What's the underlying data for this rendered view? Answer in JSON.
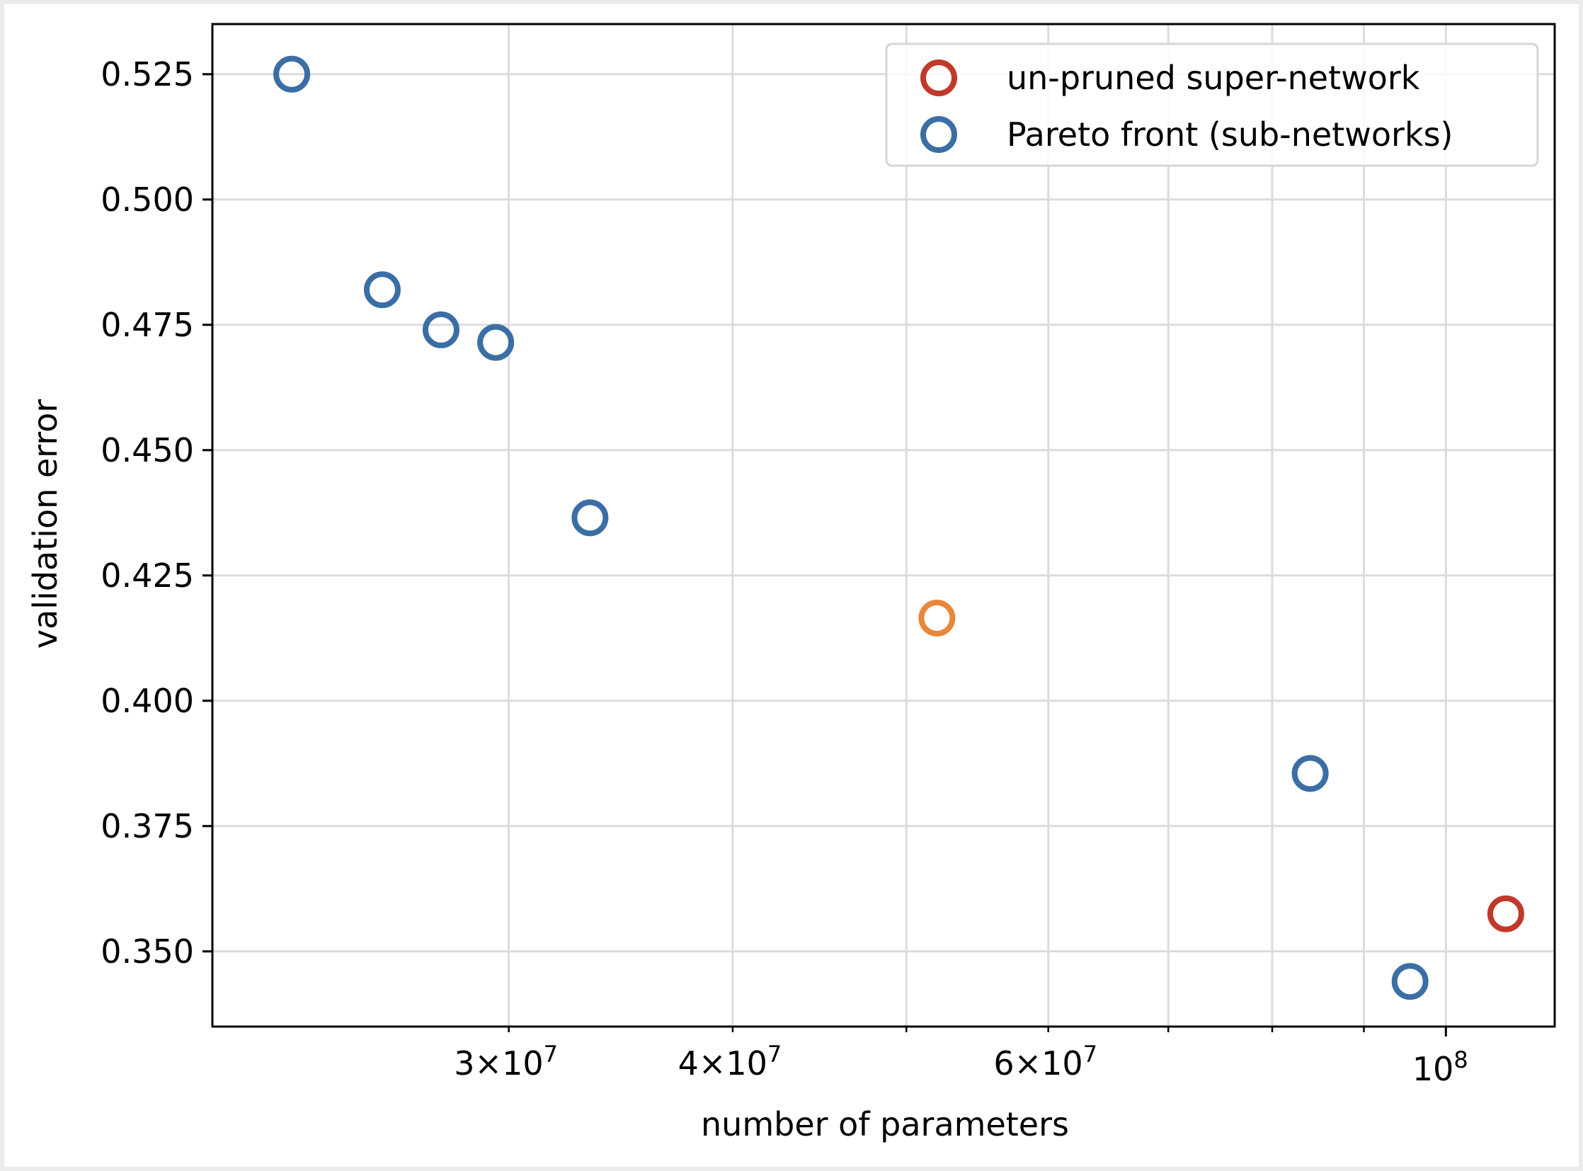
{
  "chart_data": {
    "type": "scatter",
    "title": "",
    "xlabel": "number of parameters",
    "ylabel": "validation error",
    "xscale": "log",
    "xlim": [
      20500000,
      115000000
    ],
    "ylim": [
      0.335,
      0.535
    ],
    "grid": true,
    "legend_position": "top-right",
    "x_major_ticks": [
      {
        "value": 100000000,
        "base": "10",
        "exp": "8"
      }
    ],
    "x_minor_ticks": [
      {
        "value": 30000000,
        "mantissa": "3",
        "base": "10",
        "exp": "7"
      },
      {
        "value": 40000000,
        "mantissa": "4",
        "base": "10",
        "exp": "7"
      },
      {
        "value": 50000000,
        "mantissa": "",
        "base": "",
        "exp": ""
      },
      {
        "value": 60000000,
        "mantissa": "6",
        "base": "10",
        "exp": "7"
      },
      {
        "value": 70000000,
        "mantissa": "",
        "base": "",
        "exp": ""
      },
      {
        "value": 80000000,
        "mantissa": "",
        "base": "",
        "exp": ""
      },
      {
        "value": 90000000,
        "mantissa": "",
        "base": "",
        "exp": ""
      }
    ],
    "y_ticks": [
      0.35,
      0.375,
      0.4,
      0.425,
      0.45,
      0.475,
      0.5,
      0.525
    ],
    "y_tick_labels": [
      "0.350",
      "0.375",
      "0.400",
      "0.425",
      "0.450",
      "0.475",
      "0.500",
      "0.525"
    ],
    "series": [
      {
        "name": "un-pruned super-network",
        "color": "#c0392b",
        "points": [
          {
            "x": 108000000,
            "y": 0.3575
          }
        ]
      },
      {
        "name": "Pareto front (sub-networks)",
        "color": "#3a6ea5",
        "points": [
          {
            "x": 22700000,
            "y": 0.525
          },
          {
            "x": 25500000,
            "y": 0.482
          },
          {
            "x": 27500000,
            "y": 0.474
          },
          {
            "x": 29500000,
            "y": 0.4715
          },
          {
            "x": 33300000,
            "y": 0.4365
          },
          {
            "x": 84000000,
            "y": 0.3855
          },
          {
            "x": 95500000,
            "y": 0.344
          }
        ]
      }
    ],
    "extra_points": [
      {
        "x": 52000000,
        "y": 0.4165,
        "color": "#e8873a"
      }
    ]
  }
}
